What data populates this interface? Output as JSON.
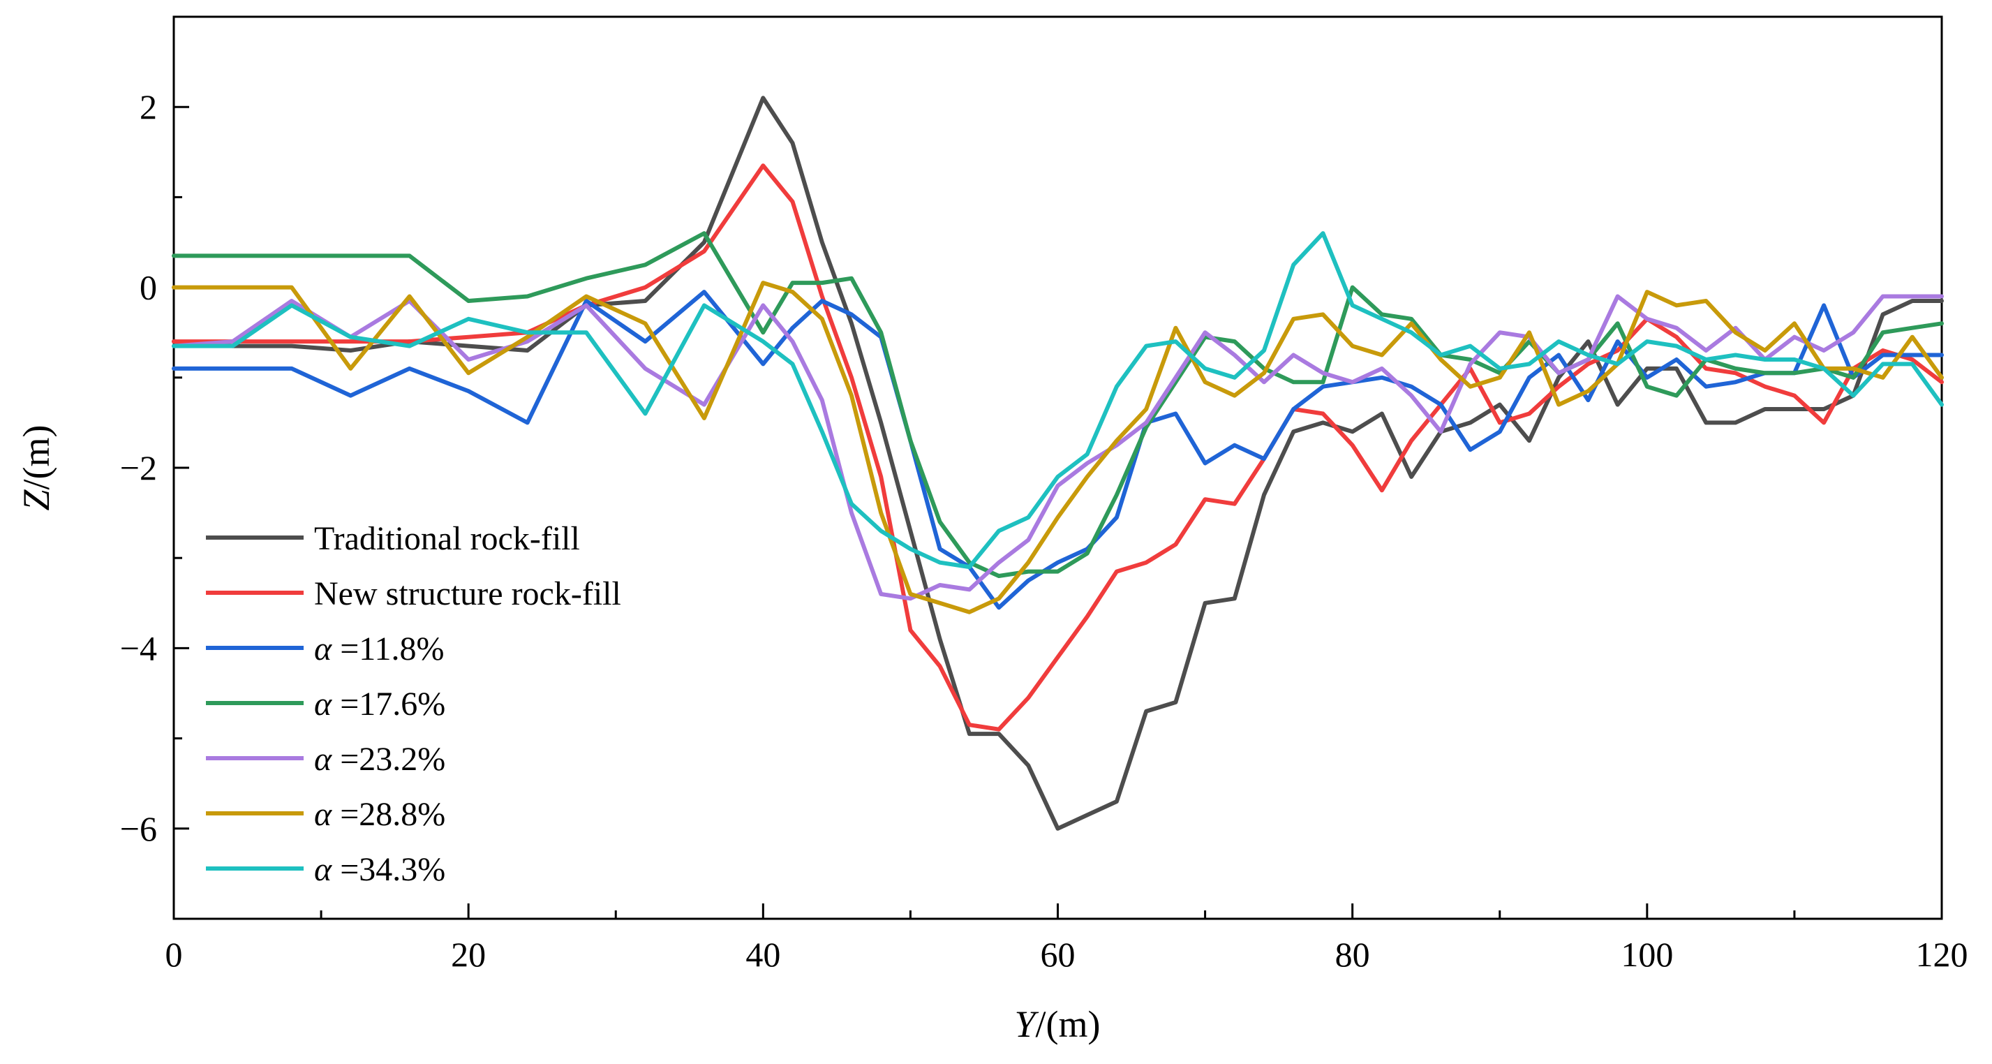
{
  "chart_data": {
    "type": "line",
    "title": "",
    "xlabel": "Y/(m)",
    "xlabel_var": "Y",
    "xlabel_unit": "/(m)",
    "ylabel": "Z/(m)",
    "ylabel_var": "Z",
    "ylabel_unit": "/(m)",
    "xlim": [
      0,
      120
    ],
    "ylim": [
      -7,
      3
    ],
    "xticks": [
      0,
      20,
      40,
      60,
      80,
      100,
      120
    ],
    "xtick_labels": [
      "0",
      "20",
      "40",
      "60",
      "80",
      "100",
      "120"
    ],
    "yticks": [
      -6,
      -4,
      -2,
      0,
      2
    ],
    "ytick_labels": [
      "−6",
      "−4",
      "−2",
      "0",
      "2"
    ],
    "grid": false,
    "legend_position": "bottom-left",
    "x": [
      0,
      4,
      8,
      12,
      16,
      20,
      24,
      28,
      32,
      36,
      40,
      42,
      44,
      46,
      48,
      50,
      52,
      54,
      56,
      58,
      60,
      62,
      64,
      66,
      68,
      70,
      72,
      74,
      76,
      78,
      80,
      82,
      84,
      86,
      88,
      90,
      92,
      94,
      96,
      98,
      100,
      102,
      104,
      106,
      108,
      110,
      112,
      114,
      116,
      118,
      120
    ],
    "series": [
      {
        "name": "Traditional rock-fill",
        "color": "#4d4d4d",
        "values": [
          -0.6,
          -0.65,
          -0.65,
          -0.7,
          -0.6,
          -0.65,
          -0.7,
          -0.2,
          -0.15,
          0.5,
          2.1,
          1.6,
          0.5,
          -0.4,
          -1.5,
          -2.7,
          -3.9,
          -4.95,
          -4.95,
          -5.3,
          -6.0,
          -5.85,
          -5.7,
          -4.7,
          -4.6,
          -3.5,
          -3.45,
          -2.3,
          -1.6,
          -1.5,
          -1.6,
          -1.4,
          -2.1,
          -1.6,
          -1.5,
          -1.3,
          -1.7,
          -1.0,
          -0.6,
          -1.3,
          -0.9,
          -0.9,
          -1.5,
          -1.5,
          -1.35,
          -1.35,
          -1.35,
          -1.2,
          -0.3,
          -0.15,
          -0.15
        ]
      },
      {
        "name": "New structure rock-fill",
        "color": "#f03c3c",
        "values": [
          -0.6,
          -0.6,
          -0.6,
          -0.6,
          -0.6,
          -0.55,
          -0.5,
          -0.2,
          0.0,
          0.4,
          1.35,
          0.95,
          -0.1,
          -1.0,
          -2.1,
          -3.8,
          -4.2,
          -4.85,
          -4.9,
          -4.55,
          -4.1,
          -3.65,
          -3.15,
          -3.05,
          -2.85,
          -2.35,
          -2.4,
          -1.9,
          -1.35,
          -1.4,
          -1.75,
          -2.25,
          -1.7,
          -1.3,
          -0.9,
          -1.5,
          -1.4,
          -1.1,
          -0.85,
          -0.7,
          -0.35,
          -0.55,
          -0.9,
          -0.95,
          -1.1,
          -1.2,
          -1.5,
          -0.9,
          -0.7,
          -0.8,
          -1.05
        ]
      },
      {
        "name": "α =11.8%",
        "color": "#1f64d6",
        "values": [
          -0.9,
          -0.9,
          -0.9,
          -1.2,
          -0.9,
          -1.15,
          -1.5,
          -0.15,
          -0.6,
          -0.05,
          -0.85,
          -0.45,
          -0.15,
          -0.3,
          -0.55,
          -1.7,
          -2.9,
          -3.1,
          -3.55,
          -3.25,
          -3.05,
          -2.9,
          -2.55,
          -1.5,
          -1.4,
          -1.95,
          -1.75,
          -1.9,
          -1.35,
          -1.1,
          -1.05,
          -1.0,
          -1.1,
          -1.3,
          -1.8,
          -1.6,
          -1.0,
          -0.75,
          -1.25,
          -0.6,
          -1.0,
          -0.8,
          -1.1,
          -1.05,
          -0.95,
          -0.95,
          -0.2,
          -1.0,
          -0.75,
          -0.75,
          -0.75
        ]
      },
      {
        "name": "α =17.6%",
        "color": "#2e9a5a",
        "values": [
          0.35,
          0.35,
          0.35,
          0.35,
          0.35,
          -0.15,
          -0.1,
          0.1,
          0.25,
          0.6,
          -0.5,
          0.05,
          0.05,
          0.1,
          -0.5,
          -1.7,
          -2.6,
          -3.05,
          -3.2,
          -3.15,
          -3.15,
          -2.95,
          -2.3,
          -1.55,
          -1.05,
          -0.55,
          -0.6,
          -0.9,
          -1.05,
          -1.05,
          0.0,
          -0.3,
          -0.35,
          -0.75,
          -0.8,
          -0.95,
          -0.6,
          -0.95,
          -0.8,
          -0.4,
          -1.1,
          -1.2,
          -0.8,
          -0.9,
          -0.95,
          -0.95,
          -0.9,
          -1.0,
          -0.5,
          -0.45,
          -0.4
        ]
      },
      {
        "name": "α =23.2%",
        "color": "#a97ae0",
        "values": [
          -0.65,
          -0.6,
          -0.15,
          -0.55,
          -0.15,
          -0.8,
          -0.6,
          -0.2,
          -0.9,
          -1.3,
          -0.2,
          -0.6,
          -1.25,
          -2.5,
          -3.4,
          -3.45,
          -3.3,
          -3.35,
          -3.05,
          -2.8,
          -2.2,
          -1.95,
          -1.75,
          -1.5,
          -1.0,
          -0.5,
          -0.75,
          -1.05,
          -0.75,
          -0.95,
          -1.05,
          -0.9,
          -1.2,
          -1.6,
          -0.85,
          -0.5,
          -0.55,
          -0.95,
          -0.8,
          -0.1,
          -0.35,
          -0.45,
          -0.7,
          -0.45,
          -0.8,
          -0.55,
          -0.7,
          -0.5,
          -0.1,
          -0.1,
          -0.1
        ]
      },
      {
        "name": "α =28.8%",
        "color": "#c89a0a",
        "values": [
          0.0,
          0.0,
          0.0,
          -0.9,
          -0.1,
          -0.95,
          -0.55,
          -0.1,
          -0.4,
          -1.45,
          0.05,
          -0.05,
          -0.35,
          -1.2,
          -2.5,
          -3.4,
          -3.5,
          -3.6,
          -3.45,
          -3.05,
          -2.55,
          -2.1,
          -1.7,
          -1.35,
          -0.45,
          -1.05,
          -1.2,
          -0.95,
          -0.35,
          -0.3,
          -0.65,
          -0.75,
          -0.4,
          -0.8,
          -1.1,
          -1.0,
          -0.5,
          -1.3,
          -1.15,
          -0.85,
          -0.05,
          -0.2,
          -0.15,
          -0.5,
          -0.7,
          -0.4,
          -0.9,
          -0.9,
          -1.0,
          -0.55,
          -1.0
        ]
      },
      {
        "name": "α =34.3%",
        "color": "#1ec0c0",
        "values": [
          -0.65,
          -0.65,
          -0.2,
          -0.55,
          -0.65,
          -0.35,
          -0.5,
          -0.5,
          -1.4,
          -0.2,
          -0.6,
          -0.85,
          -1.6,
          -2.4,
          -2.7,
          -2.9,
          -3.05,
          -3.1,
          -2.7,
          -2.55,
          -2.1,
          -1.85,
          -1.1,
          -0.65,
          -0.6,
          -0.9,
          -1.0,
          -0.7,
          0.25,
          0.6,
          -0.2,
          -0.35,
          -0.5,
          -0.75,
          -0.65,
          -0.9,
          -0.85,
          -0.6,
          -0.75,
          -0.85,
          -0.6,
          -0.65,
          -0.8,
          -0.75,
          -0.8,
          -0.8,
          -0.9,
          -1.2,
          -0.85,
          -0.85,
          -1.3
        ]
      }
    ]
  }
}
